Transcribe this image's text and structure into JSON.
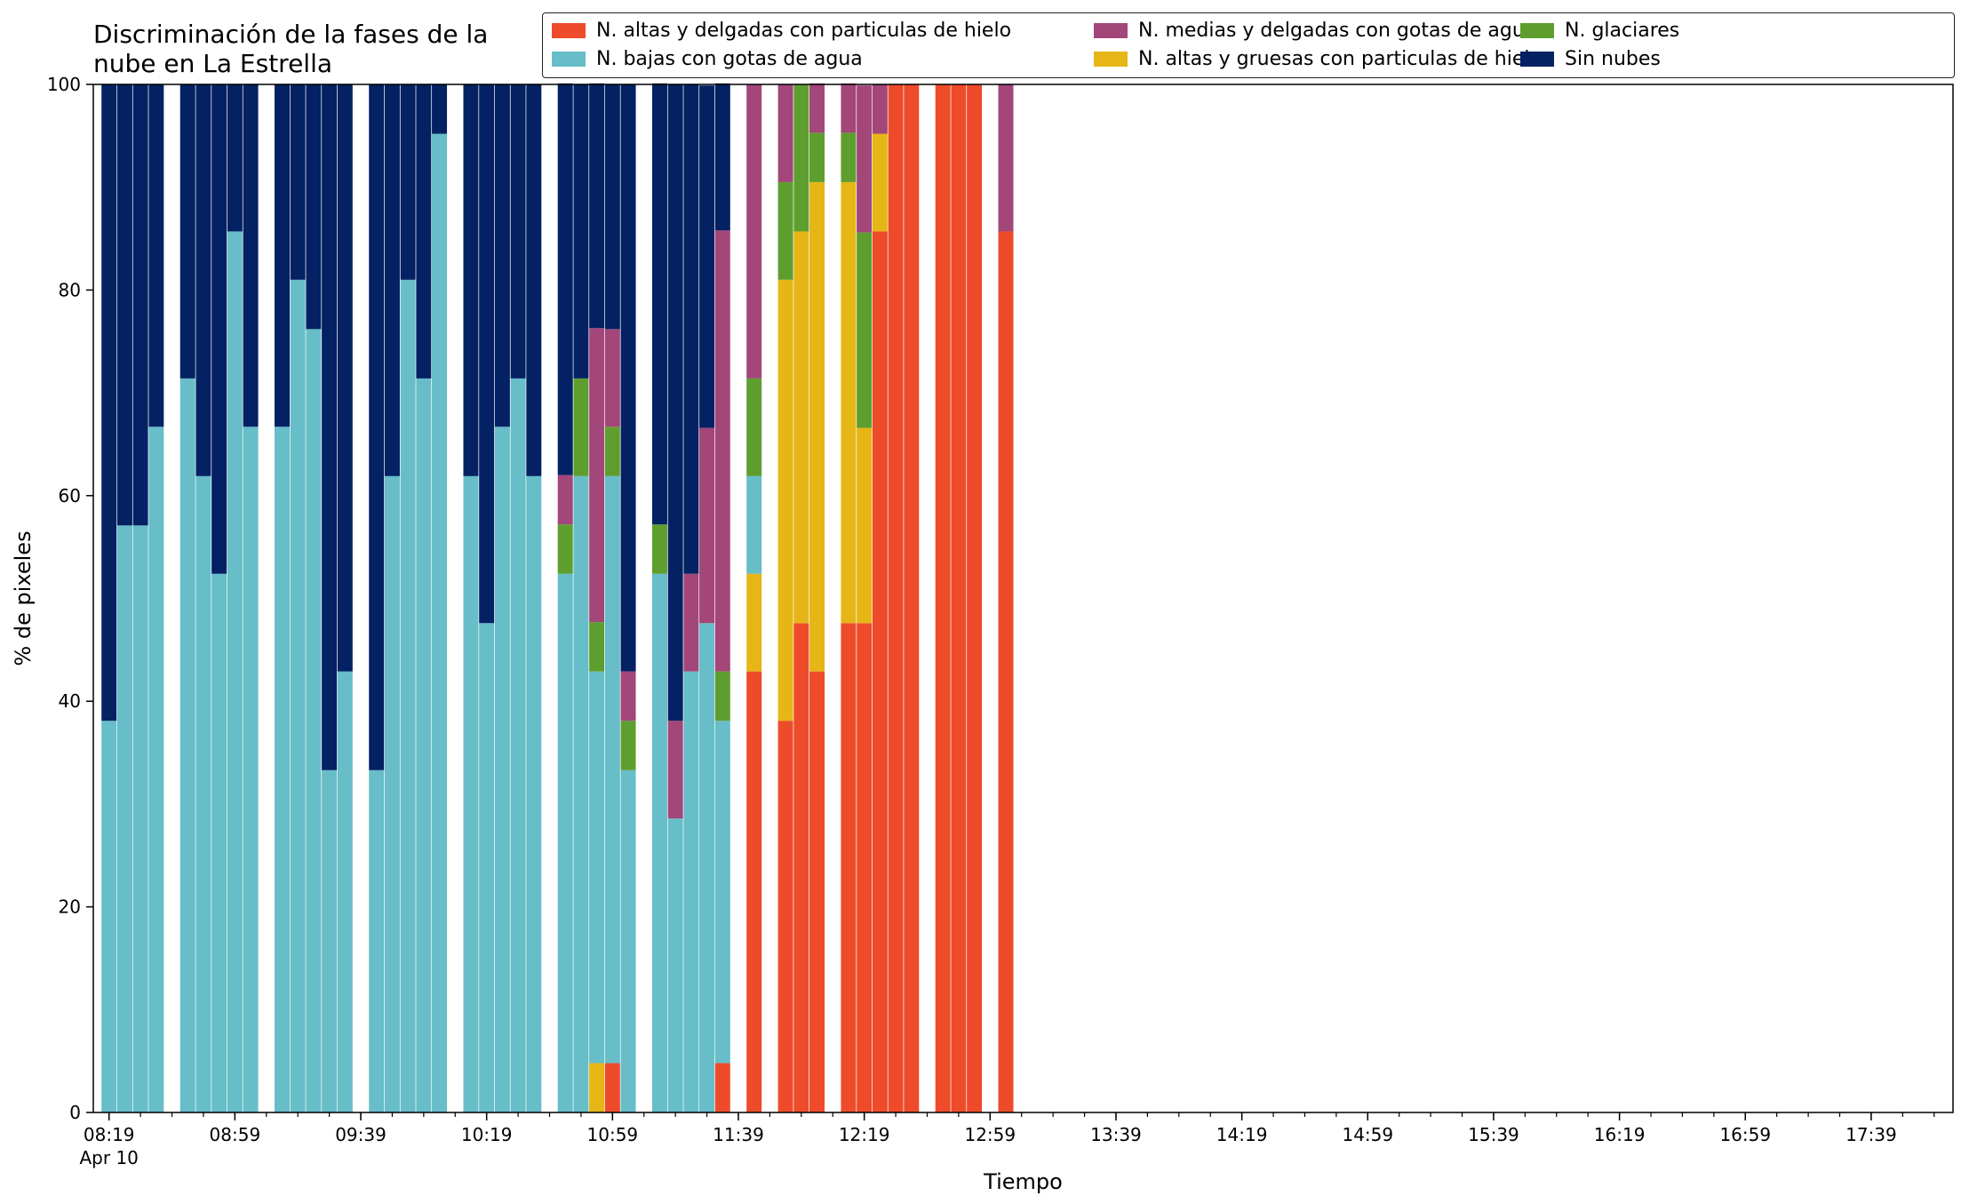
{
  "chart_data": {
    "type": "bar",
    "stacked": true,
    "title_lines": [
      "Discriminación de la fases de la",
      "nube en La Estrella"
    ],
    "xlabel": "Tiempo",
    "ylabel": "% de pixeles",
    "ylim": [
      0,
      100
    ],
    "yticks": [
      "0",
      "20",
      "40",
      "60",
      "80",
      "100"
    ],
    "xtick_labels": [
      "08:19",
      "08:59",
      "09:39",
      "10:19",
      "10:59",
      "11:39",
      "12:19",
      "12:59",
      "13:39",
      "14:19",
      "14:59",
      "15:39",
      "16:19",
      "16:59",
      "17:39"
    ],
    "x_date_label": "Apr 10",
    "grid": false,
    "legend_position": "top-right",
    "series": [
      {
        "name": "N. altas y delgadas con particulas de hielo",
        "color": "#ee4b2b"
      },
      {
        "name": "N. altas y gruesas con particulas de hielo",
        "color": "#e5b616"
      },
      {
        "name": "N. bajas con gotas de agua",
        "color": "#67bdc8"
      },
      {
        "name": "N. glaciares",
        "color": "#5e9e2f"
      },
      {
        "name": "N. medias y delgadas con gotas de agua",
        "color": "#a3467a"
      },
      {
        "name": "Sin nubes",
        "color": "#032163"
      }
    ],
    "legend_order": [
      0,
      2,
      4,
      1,
      3,
      5
    ],
    "x_range_minutes": [
      "08:14",
      "18:05"
    ],
    "bars": [
      {
        "time": "08:19",
        "values": [
          0,
          0,
          38.1,
          0,
          0,
          61.9
        ]
      },
      {
        "time": "08:24",
        "values": [
          0,
          0,
          57.1,
          0,
          0,
          42.9
        ]
      },
      {
        "time": "08:29",
        "values": [
          0,
          0,
          57.1,
          0,
          0,
          42.9
        ]
      },
      {
        "time": "08:34",
        "values": [
          0,
          0,
          66.7,
          0,
          0,
          33.3
        ]
      },
      {
        "time": "08:44",
        "values": [
          0,
          0,
          71.4,
          0,
          0,
          28.6
        ]
      },
      {
        "time": "08:49",
        "values": [
          0,
          0,
          61.9,
          0,
          0,
          38.1
        ]
      },
      {
        "time": "08:54",
        "values": [
          0,
          0,
          52.4,
          0,
          0,
          47.6
        ]
      },
      {
        "time": "08:59",
        "values": [
          0,
          0,
          85.7,
          0,
          0,
          14.3
        ]
      },
      {
        "time": "09:04",
        "values": [
          0,
          0,
          66.7,
          0,
          0,
          33.3
        ]
      },
      {
        "time": "09:14",
        "values": [
          0,
          0,
          66.7,
          0,
          0,
          33.3
        ]
      },
      {
        "time": "09:19",
        "values": [
          0,
          0,
          81.0,
          0,
          0,
          19.0
        ]
      },
      {
        "time": "09:24",
        "values": [
          0,
          0,
          76.2,
          0,
          0,
          23.8
        ]
      },
      {
        "time": "09:29",
        "values": [
          0,
          0,
          33.3,
          0,
          0,
          66.7
        ]
      },
      {
        "time": "09:34",
        "values": [
          0,
          0,
          42.9,
          0,
          0,
          57.1
        ]
      },
      {
        "time": "09:44",
        "values": [
          0,
          0,
          33.3,
          0,
          0,
          66.7
        ]
      },
      {
        "time": "09:49",
        "values": [
          0,
          0,
          61.9,
          0,
          0,
          38.1
        ]
      },
      {
        "time": "09:54",
        "values": [
          0,
          0,
          81.0,
          0,
          0,
          19.0
        ]
      },
      {
        "time": "09:59",
        "values": [
          0,
          0,
          71.4,
          0,
          0,
          28.6
        ]
      },
      {
        "time": "10:04",
        "values": [
          0,
          0,
          95.2,
          0,
          0,
          4.8
        ]
      },
      {
        "time": "10:14",
        "values": [
          0,
          0,
          61.9,
          0,
          0,
          38.1
        ]
      },
      {
        "time": "10:19",
        "values": [
          0,
          0,
          47.6,
          0,
          0,
          52.4
        ]
      },
      {
        "time": "10:24",
        "values": [
          0,
          0,
          66.7,
          0,
          0,
          33.3
        ]
      },
      {
        "time": "10:29",
        "values": [
          0,
          0,
          71.4,
          0,
          0,
          28.6
        ]
      },
      {
        "time": "10:34",
        "values": [
          0,
          0,
          61.9,
          0,
          0,
          38.1
        ]
      },
      {
        "time": "10:44",
        "values": [
          0,
          0,
          52.4,
          4.8,
          4.8,
          38.1
        ]
      },
      {
        "time": "10:49",
        "values": [
          0,
          0,
          61.9,
          9.5,
          0,
          28.6
        ]
      },
      {
        "time": "10:54",
        "values": [
          0,
          4.8,
          38.1,
          4.8,
          28.6,
          23.8
        ]
      },
      {
        "time": "10:59",
        "values": [
          4.8,
          0,
          57.1,
          4.8,
          9.5,
          23.8
        ]
      },
      {
        "time": "11:04",
        "values": [
          0,
          0,
          33.3,
          4.8,
          4.8,
          57.1
        ]
      },
      {
        "time": "11:14",
        "values": [
          0,
          0,
          52.4,
          4.8,
          0,
          42.9
        ]
      },
      {
        "time": "11:19",
        "values": [
          0,
          0,
          28.6,
          0,
          9.5,
          61.9
        ]
      },
      {
        "time": "11:24",
        "values": [
          0,
          0,
          42.9,
          0,
          9.5,
          47.6
        ]
      },
      {
        "time": "11:29",
        "values": [
          0,
          0,
          47.6,
          0,
          19.0,
          33.3
        ]
      },
      {
        "time": "11:34",
        "values": [
          4.8,
          0,
          33.3,
          4.8,
          42.9,
          14.3
        ]
      },
      {
        "time": "11:44",
        "values": [
          42.9,
          9.5,
          9.5,
          9.5,
          28.6,
          0
        ]
      },
      {
        "time": "11:54",
        "values": [
          38.1,
          42.9,
          0,
          9.5,
          9.5,
          0
        ]
      },
      {
        "time": "11:59",
        "values": [
          47.6,
          38.1,
          0,
          14.3,
          0,
          0
        ]
      },
      {
        "time": "12:04",
        "values": [
          42.9,
          47.6,
          0,
          4.8,
          4.8,
          0
        ]
      },
      {
        "time": "12:14",
        "values": [
          47.6,
          42.9,
          0,
          4.8,
          4.8,
          0
        ]
      },
      {
        "time": "12:19",
        "values": [
          47.6,
          19.0,
          0,
          19.0,
          14.3,
          0
        ]
      },
      {
        "time": "12:24",
        "values": [
          85.7,
          9.5,
          0,
          0,
          4.8,
          0
        ]
      },
      {
        "time": "12:29",
        "values": [
          100,
          0,
          0,
          0,
          0,
          0
        ]
      },
      {
        "time": "12:34",
        "values": [
          100,
          0,
          0,
          0,
          0,
          0
        ]
      },
      {
        "time": "12:44",
        "values": [
          100,
          0,
          0,
          0,
          0,
          0
        ]
      },
      {
        "time": "12:49",
        "values": [
          100,
          0,
          0,
          0,
          0,
          0
        ]
      },
      {
        "time": "12:54",
        "values": [
          100,
          0,
          0,
          0,
          0,
          0
        ]
      },
      {
        "time": "13:04",
        "values": [
          85.7,
          0,
          0,
          0,
          14.3,
          0
        ]
      }
    ]
  }
}
